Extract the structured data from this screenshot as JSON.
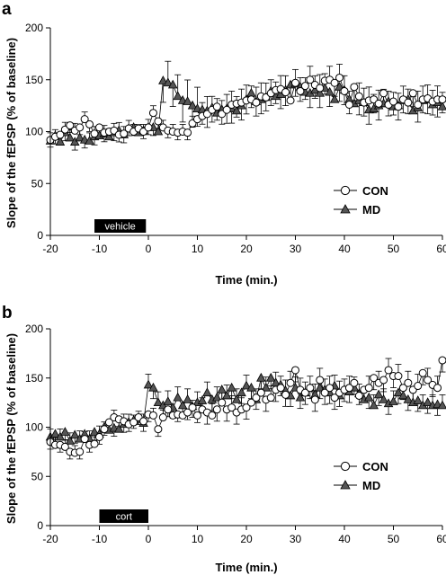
{
  "chart_data": [
    {
      "panel": "a",
      "type": "scatter",
      "xlabel": "Time (min.)",
      "ylabel": "Slope of the fEPSP (% of baseline)",
      "xlim": [
        -20,
        60
      ],
      "ylim": [
        0,
        200
      ],
      "xticks": [
        -20,
        -10,
        0,
        10,
        20,
        30,
        40,
        50,
        60
      ],
      "yticks": [
        0,
        50,
        100,
        150,
        200
      ],
      "legend": "bottom-right",
      "bar_label": "vehicle",
      "bar_range": [
        -11,
        -0.5
      ],
      "series": [
        {
          "name": "CON",
          "marker": "circle-open",
          "x": [
            -20,
            -19,
            -18,
            -17,
            -16,
            -15,
            -14,
            -13,
            -12,
            -11,
            -10,
            -9,
            -8,
            -7,
            -6,
            -5,
            -4,
            -3,
            -2,
            -1,
            0,
            1,
            2,
            3,
            4,
            5,
            6,
            7,
            8,
            9,
            10,
            11,
            12,
            13,
            14,
            15,
            16,
            17,
            18,
            19,
            20,
            21,
            22,
            23,
            24,
            25,
            26,
            27,
            28,
            29,
            30,
            31,
            32,
            33,
            34,
            35,
            36,
            37,
            38,
            39,
            40,
            41,
            42,
            43,
            44,
            45,
            46,
            47,
            48,
            49,
            50,
            51,
            52,
            53,
            54,
            55,
            56,
            57,
            58,
            59,
            60
          ],
          "y": [
            92,
            95,
            97,
            102,
            106,
            101,
            104,
            112,
            107,
            98,
            104,
            99,
            100,
            101,
            97,
            98,
            103,
            100,
            103,
            100,
            104,
            118,
            110,
            104,
            101,
            100,
            99,
            100,
            99,
            108,
            112,
            115,
            117,
            121,
            124,
            117,
            121,
            126,
            127,
            128,
            130,
            131,
            128,
            134,
            133,
            137,
            140,
            141,
            138,
            130,
            147,
            139,
            144,
            150,
            145,
            142,
            149,
            150,
            147,
            152,
            139,
            126,
            143,
            134,
            128,
            130,
            131,
            127,
            137,
            126,
            129,
            124,
            131,
            128,
            137,
            126,
            131,
            132,
            129,
            131,
            131
          ]
        },
        {
          "name": "MD",
          "marker": "triangle-filled",
          "x": [
            -20,
            -19,
            -18,
            -17,
            -16,
            -15,
            -14,
            -13,
            -12,
            -11,
            -10,
            -9,
            -8,
            -7,
            -6,
            -5,
            -4,
            -3,
            -2,
            -1,
            0,
            1,
            2,
            3,
            4,
            5,
            6,
            7,
            8,
            9,
            10,
            11,
            12,
            13,
            14,
            15,
            16,
            17,
            18,
            19,
            20,
            21,
            22,
            23,
            24,
            25,
            26,
            27,
            28,
            29,
            30,
            31,
            32,
            33,
            34,
            35,
            36,
            37,
            38,
            39,
            40,
            41,
            42,
            43,
            44,
            45,
            46,
            47,
            48,
            49,
            50,
            51,
            52,
            53,
            54,
            55,
            56,
            57,
            58,
            59,
            60
          ],
          "y": [
            91,
            96,
            90,
            99,
            94,
            90,
            94,
            92,
            91,
            95,
            96,
            98,
            95,
            99,
            101,
            97,
            103,
            104,
            99,
            101,
            104,
            104,
            100,
            149,
            147,
            145,
            134,
            130,
            129,
            125,
            122,
            121,
            120,
            123,
            118,
            121,
            122,
            122,
            120,
            125,
            131,
            137,
            129,
            131,
            133,
            139,
            134,
            136,
            140,
            145,
            146,
            143,
            138,
            137,
            140,
            137,
            142,
            138,
            131,
            143,
            140,
            131,
            127,
            130,
            128,
            121,
            122,
            125,
            127,
            129,
            124,
            125,
            130,
            131,
            120,
            123,
            130,
            131,
            126,
            128,
            124
          ]
        }
      ]
    },
    {
      "panel": "b",
      "type": "scatter",
      "xlabel": "Time (min.)",
      "ylabel": "Slope of the fEPSP (% of baseline)",
      "xlim": [
        -20,
        60
      ],
      "ylim": [
        0,
        200
      ],
      "xticks": [
        -20,
        -10,
        0,
        10,
        20,
        30,
        40,
        50,
        60
      ],
      "yticks": [
        0,
        50,
        100,
        150,
        200
      ],
      "legend": "bottom-right",
      "bar_label": "cort",
      "bar_range": [
        -10,
        0
      ],
      "series": [
        {
          "name": "CON",
          "marker": "circle-open",
          "x": [
            -20,
            -19,
            -18,
            -17,
            -16,
            -15,
            -14,
            -13,
            -12,
            -11,
            -10,
            -9,
            -8,
            -7,
            -6,
            -5,
            -4,
            -3,
            -2,
            -1,
            0,
            1,
            2,
            3,
            4,
            5,
            6,
            7,
            8,
            9,
            10,
            11,
            12,
            13,
            14,
            15,
            16,
            17,
            18,
            19,
            20,
            21,
            22,
            23,
            24,
            25,
            26,
            27,
            28,
            29,
            30,
            31,
            32,
            33,
            34,
            35,
            36,
            37,
            38,
            39,
            40,
            41,
            42,
            43,
            44,
            45,
            46,
            47,
            48,
            49,
            50,
            51,
            52,
            53,
            54,
            55,
            56,
            57,
            58,
            59,
            60
          ],
          "y": [
            85,
            82,
            82,
            80,
            75,
            74,
            75,
            88,
            82,
            83,
            90,
            98,
            105,
            110,
            108,
            106,
            103,
            105,
            110,
            106,
            113,
            112,
            98,
            110,
            118,
            112,
            113,
            112,
            115,
            120,
            112,
            118,
            115,
            112,
            118,
            125,
            118,
            120,
            115,
            118,
            120,
            125,
            130,
            135,
            128,
            130,
            138,
            140,
            133,
            145,
            158,
            138,
            135,
            140,
            128,
            148,
            135,
            140,
            130,
            135,
            138,
            140,
            145,
            132,
            138,
            140,
            150,
            145,
            148,
            158,
            152,
            152,
            140,
            145,
            138,
            142,
            155,
            148,
            143,
            140,
            168
          ]
        },
        {
          "name": "MD",
          "marker": "triangle-filled",
          "x": [
            -20,
            -19,
            -18,
            -17,
            -16,
            -15,
            -14,
            -13,
            -12,
            -11,
            -10,
            -9,
            -8,
            -7,
            -6,
            -5,
            -4,
            -3,
            -2,
            -1,
            0,
            1,
            2,
            3,
            4,
            5,
            6,
            7,
            8,
            9,
            10,
            11,
            12,
            13,
            14,
            15,
            16,
            17,
            18,
            19,
            20,
            21,
            22,
            23,
            24,
            25,
            26,
            27,
            28,
            29,
            30,
            31,
            32,
            33,
            34,
            35,
            36,
            37,
            38,
            39,
            40,
            41,
            42,
            43,
            44,
            45,
            46,
            47,
            48,
            49,
            50,
            51,
            52,
            53,
            54,
            55,
            56,
            57,
            58,
            59,
            60
          ],
          "y": [
            90,
            93,
            90,
            95,
            86,
            92,
            88,
            93,
            88,
            95,
            93,
            100,
            97,
            99,
            98,
            103,
            105,
            107,
            108,
            104,
            143,
            140,
            125,
            122,
            126,
            120,
            130,
            122,
            128,
            121,
            125,
            127,
            135,
            128,
            130,
            138,
            132,
            140,
            128,
            135,
            142,
            140,
            128,
            150,
            140,
            150,
            145,
            143,
            137,
            132,
            140,
            130,
            135,
            140,
            133,
            140,
            138,
            135,
            142,
            132,
            138,
            136,
            140,
            134,
            128,
            130,
            122,
            133,
            128,
            124,
            126,
            135,
            132,
            128,
            125,
            127,
            122,
            125,
            122,
            123,
            122
          ]
        }
      ]
    }
  ],
  "panels": [
    {
      "letter": "a",
      "legend": [
        "CON",
        "MD"
      ],
      "bar_label": "vehicle",
      "ylabel": "Slope of the fEPSP (% of baseline)",
      "xlabel": "Time (min.)"
    },
    {
      "letter": "b",
      "legend": [
        "CON",
        "MD"
      ],
      "bar_label": "cort",
      "ylabel": "Slope of the fEPSP (% of baseline)",
      "xlabel": "Time (min.)"
    }
  ]
}
